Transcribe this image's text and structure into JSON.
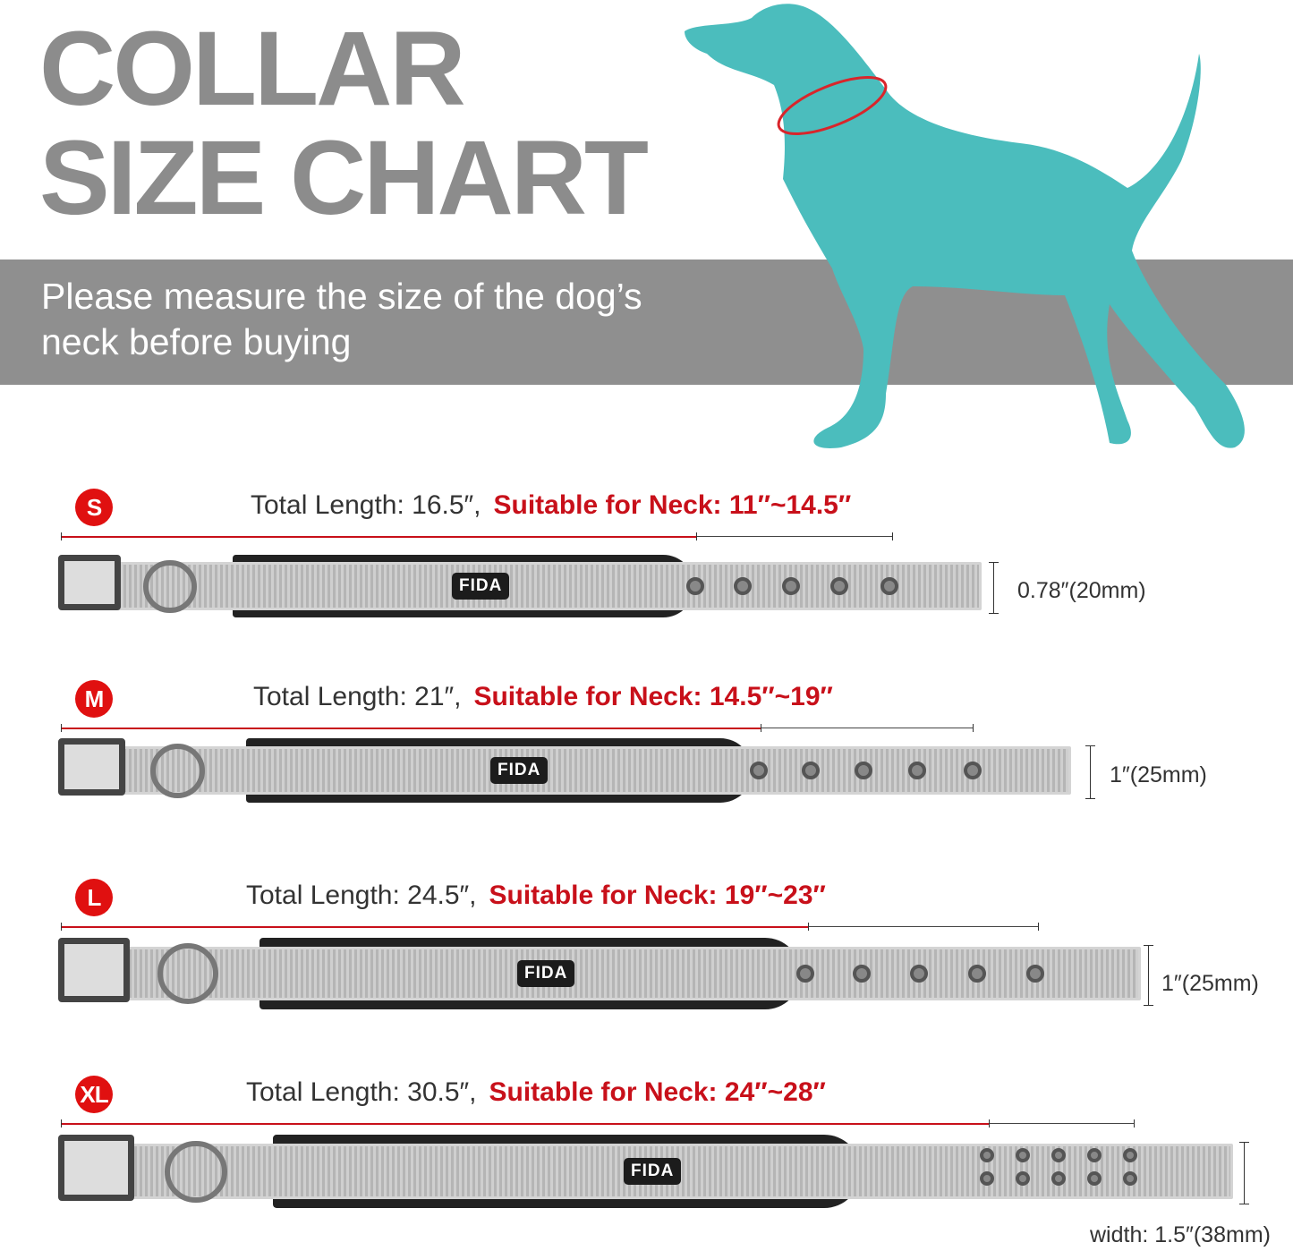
{
  "header": {
    "title_line1": "COLLAR",
    "title_line2": "SIZE CHART",
    "subtitle": "Please measure the size of the dog’s neck before buying"
  },
  "colors": {
    "title_gray": "#8c8c8c",
    "band_gray": "#8f8f8f",
    "dog_teal": "#4bbdbd",
    "accent_red": "#c8101a"
  },
  "brand": "FIDA",
  "sizes": [
    {
      "size": "S",
      "total_length": "Total Length: 16.5″,",
      "neck": "Suitable for Neck: 11″~14.5″",
      "width": "0.78″(20mm)",
      "holes": 5
    },
    {
      "size": "M",
      "total_length": "Total Length: 21″,",
      "neck": "Suitable for Neck: 14.5″~19″",
      "width": "1″(25mm)",
      "holes": 5
    },
    {
      "size": "L",
      "total_length": "Total Length: 24.5″,",
      "neck": "Suitable for Neck: 19″~23″",
      "width": "1″(25mm)",
      "holes": 5
    },
    {
      "size": "XL",
      "total_length": "Total Length: 30.5″,",
      "neck": "Suitable for Neck: 24″~28″",
      "width": "width: 1.5″(38mm)",
      "holes": 10
    }
  ]
}
